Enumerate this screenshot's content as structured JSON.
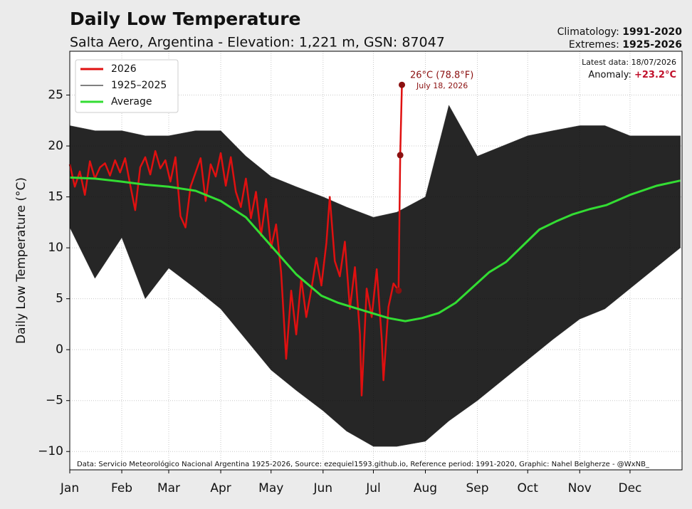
{
  "chart_data": {
    "type": "line",
    "title": "Daily Low Temperature",
    "subtitle": "Salta Aero, Argentina - Elevation: 1,221 m, GSN: 87047",
    "ylabel": "Daily Low Temperature (°C)",
    "climatology_label": "Climatology: ",
    "climatology": "1991-2020",
    "extremes_label": "Extremes: ",
    "extremes": "1925-2026",
    "latest_data": "Latest data: 18/07/2026",
    "anomaly_label": "Anomaly: ",
    "anomaly": "+23.2°C",
    "peak_annotation": "26°C (78.8°F)",
    "peak_date": "July 18, 2026",
    "source": "Data: Servicio Meteorológico Nacional Argentina 1925-2026, Source: ezequiel1593.github.io, Reference period: 1991-2020, Graphic: Nahel Belgherze - @WxNB_",
    "xlim": [
      0,
      365
    ],
    "ylim": [
      -11.8,
      29.3
    ],
    "xticks": [
      {
        "value": 0,
        "label": "Jan"
      },
      {
        "value": 31,
        "label": "Feb"
      },
      {
        "value": 59,
        "label": "Mar"
      },
      {
        "value": 90,
        "label": "Apr"
      },
      {
        "value": 120,
        "label": "May"
      },
      {
        "value": 151,
        "label": "Jun"
      },
      {
        "value": 181,
        "label": "Jul"
      },
      {
        "value": 212,
        "label": "Aug"
      },
      {
        "value": 243,
        "label": "Sep"
      },
      {
        "value": 273,
        "label": "Oct"
      },
      {
        "value": 304,
        "label": "Nov"
      },
      {
        "value": 334,
        "label": "Dec"
      }
    ],
    "yticks": [
      {
        "value": -10,
        "label": "−10"
      },
      {
        "value": -5,
        "label": "−5"
      },
      0,
      5,
      10,
      15,
      20,
      25
    ],
    "grid": true,
    "legend_position": "upper left",
    "series": [
      {
        "name": "2026",
        "color": "#e01010",
        "kind": "line",
        "x": [
          0,
          3,
          6,
          9,
          12,
          15,
          18,
          21,
          24,
          27,
          30,
          33,
          36,
          39,
          42,
          45,
          48,
          51,
          54,
          57,
          60,
          63,
          66,
          69,
          72,
          75,
          78,
          81,
          84,
          87,
          90,
          93,
          96,
          99,
          102,
          105,
          108,
          111,
          114,
          117,
          120,
          123,
          126,
          129,
          132,
          135,
          138,
          141,
          144,
          147,
          150,
          153,
          155,
          158,
          161,
          164,
          167,
          170,
          173,
          174,
          177,
          180,
          183,
          186,
          187,
          190,
          193,
          196,
          197,
          198
        ],
        "values": [
          18.2,
          16.0,
          17.5,
          15.2,
          18.5,
          16.8,
          17.9,
          18.3,
          17.1,
          18.6,
          17.4,
          18.8,
          16.2,
          13.7,
          17.9,
          18.9,
          17.2,
          19.5,
          17.8,
          18.6,
          16.5,
          18.9,
          13.1,
          12.0,
          16.0,
          17.4,
          18.8,
          14.6,
          18.2,
          17.0,
          19.3,
          16.1,
          18.9,
          15.5,
          14.0,
          16.8,
          12.9,
          15.5,
          11.2,
          14.8,
          10.0,
          12.3,
          7.6,
          -0.9,
          5.8,
          1.5,
          7.0,
          3.2,
          5.9,
          9.0,
          6.3,
          10.5,
          15.0,
          8.7,
          7.2,
          10.6,
          4.0,
          8.1,
          1.5,
          -4.5,
          6.0,
          3.2,
          7.9,
          1.0,
          -3.0,
          4.2,
          6.5,
          5.8,
          19.1,
          26.0
        ]
      },
      {
        "name": "1925–2025",
        "color": "#000000",
        "kind": "band",
        "x": [
          0,
          15,
          31,
          45,
          59,
          75,
          90,
          105,
          120,
          135,
          151,
          165,
          181,
          195,
          212,
          226,
          243,
          258,
          273,
          288,
          304,
          319,
          334,
          349,
          364
        ],
        "max": [
          22.0,
          21.5,
          21.5,
          21.0,
          21.0,
          21.5,
          21.5,
          19.0,
          17.0,
          16.0,
          15.0,
          14.0,
          13.0,
          13.5,
          15.0,
          24.0,
          19.0,
          20.0,
          21.0,
          21.5,
          22.0,
          22.0,
          21.0,
          21.0,
          21.0
        ],
        "min": [
          12.0,
          7.0,
          11.0,
          5.0,
          8.0,
          6.0,
          4.0,
          1.0,
          -2.0,
          -4.0,
          -6.0,
          -8.0,
          -9.5,
          -9.5,
          -9.0,
          -7.0,
          -5.0,
          -3.0,
          -1.0,
          1.0,
          3.0,
          4.0,
          6.0,
          8.0,
          10.0
        ]
      },
      {
        "name": "Average",
        "color": "#33dd33",
        "kind": "line",
        "x": [
          0,
          15,
          31,
          45,
          59,
          75,
          90,
          105,
          120,
          135,
          150,
          160,
          170,
          180,
          190,
          200,
          210,
          220,
          230,
          240,
          250,
          260,
          270,
          280,
          290,
          300,
          310,
          320,
          334,
          350,
          364
        ],
        "values": [
          16.9,
          16.8,
          16.5,
          16.2,
          16.0,
          15.6,
          14.6,
          13.0,
          10.2,
          7.4,
          5.3,
          4.6,
          4.1,
          3.6,
          3.1,
          2.8,
          3.1,
          3.6,
          4.6,
          6.1,
          7.6,
          8.6,
          10.2,
          11.8,
          12.6,
          13.3,
          13.8,
          14.2,
          15.2,
          16.1,
          16.6
        ]
      }
    ]
  }
}
